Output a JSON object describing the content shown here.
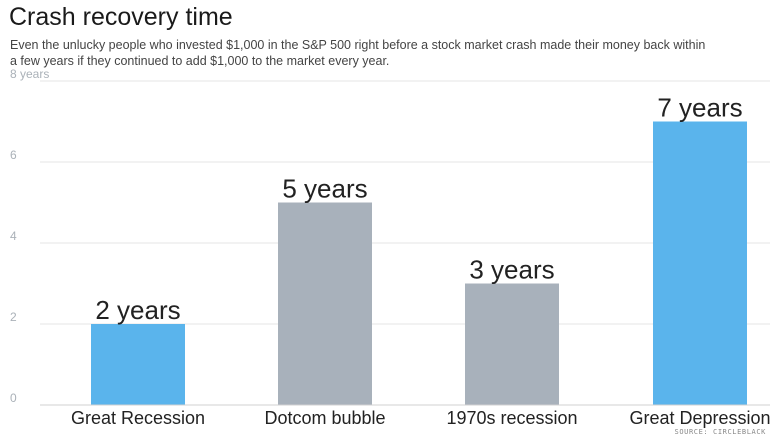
{
  "header": {
    "title": "Crash recovery time",
    "subtitle": "Even the unlucky people who invested $1,000 in the S&P 500 right before a stock market crash made their money back within a few years if they continued to add $1,000 to the market every year."
  },
  "footer": {
    "source": "SOURCE: CIRCLEBLACK"
  },
  "chart_data": {
    "type": "bar",
    "title": "Crash recovery time",
    "categories": [
      "Great Recession",
      "Dotcom bubble",
      "1970s recession",
      "Great Depression"
    ],
    "values": [
      2,
      5,
      3,
      7
    ],
    "data_labels": [
      "2 years",
      "5 years",
      "3 years",
      "7 years"
    ],
    "bar_colors": [
      "#5ab4ec",
      "#a8b1bb",
      "#a8b1bb",
      "#5ab4ec"
    ],
    "ylim": [
      0,
      8
    ],
    "yticks": [
      0,
      2,
      4,
      6,
      8
    ],
    "ytick_labels": [
      "0",
      "2",
      "4",
      "6",
      "8 years"
    ],
    "xlabel": "",
    "ylabel": "",
    "grid": true,
    "legend": "none"
  }
}
